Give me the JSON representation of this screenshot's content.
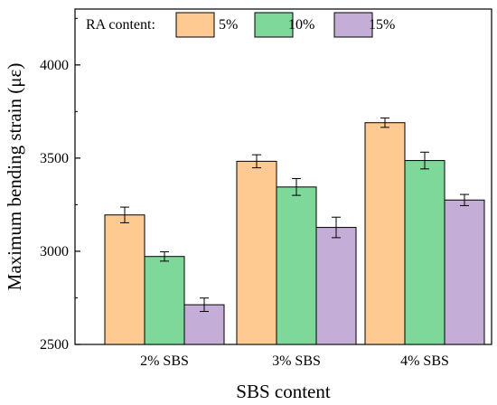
{
  "chart_data": {
    "type": "bar",
    "title": "",
    "xlabel": "SBS content",
    "ylabel": "Maximum bending strain (με)",
    "categories": [
      "2% SBS",
      "3% SBS",
      "4% SBS"
    ],
    "ylim": [
      2500,
      4300
    ],
    "yticks": [
      2500,
      3000,
      3500,
      4000
    ],
    "grid": false,
    "legend": {
      "title": "RA content:",
      "placement": "top"
    },
    "series": [
      {
        "name": "5%",
        "color": "#FFC992",
        "values": [
          3195,
          3483,
          3690
        ],
        "errors": [
          42,
          35,
          25
        ]
      },
      {
        "name": "10%",
        "color": "#7ED89A",
        "values": [
          2972,
          3345,
          3487
        ],
        "errors": [
          25,
          45,
          45
        ]
      },
      {
        "name": "15%",
        "color": "#C4AED8",
        "values": [
          2713,
          3128,
          3275
        ],
        "errors": [
          36,
          55,
          30
        ]
      }
    ]
  }
}
